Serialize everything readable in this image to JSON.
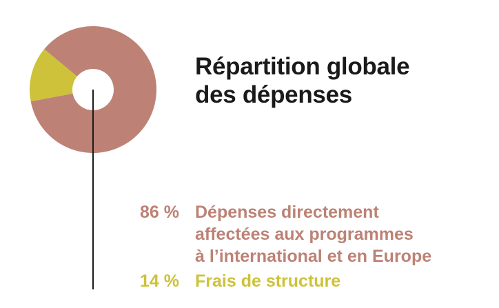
{
  "chart_data": {
    "type": "pie",
    "title_lines": [
      "Répartition globale",
      "des dépenses"
    ],
    "slices": [
      {
        "value": 86,
        "label": "86 %",
        "description_lines": [
          "Dépenses directement",
          "affectées aux programmes",
          "à l’international et en Europe"
        ],
        "color": "#bd8275"
      },
      {
        "value": 14,
        "label": "14 %",
        "description_lines": [
          "Frais de structure"
        ],
        "color": "#cdc239"
      }
    ],
    "hole_color": "#ffffff",
    "leader_line_color": "#1a1a1a"
  }
}
